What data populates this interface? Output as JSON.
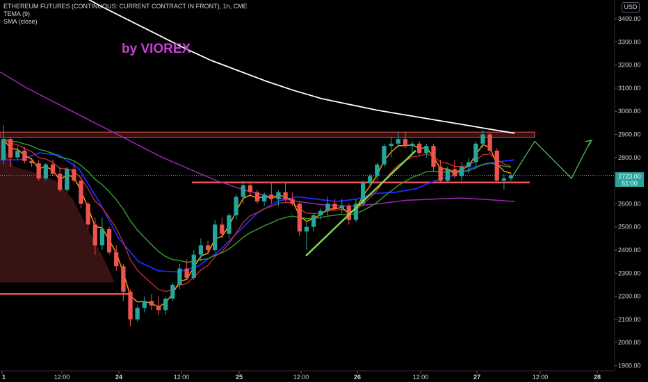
{
  "header": {
    "title": "ETHEREUM FUTURES (CONTINUOUS: CURRENT CONTRACT IN FRONT), 1h, CME",
    "indicator1": "TEMA (9)",
    "indicator2": "SMA (close)"
  },
  "watermark": "by VIOREX",
  "currency": "USD",
  "current_price": {
    "value": "2723.00",
    "countdown": "51:00"
  },
  "colors": {
    "background": "#000000",
    "up": "#26a69a",
    "down": "#ef5350",
    "sma_long": "#ffffff",
    "sma_purple": "#9c27b0",
    "tema_orange": "#ff9800",
    "ma_blue": "#1e2bff",
    "ma_green": "#2e9b2e",
    "ma_red": "#d32f2f",
    "zone": "#ef5350",
    "trendline": "#7fd94a",
    "projection": "#4caf50",
    "watermark": "#c83fd6"
  },
  "chart_data": {
    "type": "candlestick",
    "symbol": "ETHEREUM FUTURES (CONTINUOUS: CURRENT CONTRACT IN FRONT)",
    "interval": "1h",
    "exchange": "CME",
    "ylim": [
      1860,
      3530
    ],
    "y_ticks": [
      "3400.00",
      "3300.00",
      "3200.00",
      "3100.00",
      "3000.00",
      "2900.00",
      "2800.00",
      "2700.00",
      "2600.00",
      "2500.00",
      "2400.00",
      "2300.00",
      "2200.00",
      "2100.00",
      "2000.00",
      "1900.00"
    ],
    "x_ticks": [
      "1",
      "12:00",
      "24",
      "12:00",
      "25",
      "12:00",
      "26",
      "12:00",
      "27",
      "12:00",
      "28"
    ],
    "candles_ohlc": [
      [
        2790,
        2940,
        2770,
        2880
      ],
      [
        2880,
        2890,
        2760,
        2800
      ],
      [
        2800,
        2850,
        2790,
        2830
      ],
      [
        2830,
        2845,
        2775,
        2785
      ],
      [
        2785,
        2800,
        2760,
        2775
      ],
      [
        2775,
        2790,
        2700,
        2710
      ],
      [
        2710,
        2775,
        2700,
        2770
      ],
      [
        2770,
        2790,
        2720,
        2730
      ],
      [
        2730,
        2760,
        2650,
        2660
      ],
      [
        2660,
        2760,
        2650,
        2750
      ],
      [
        2750,
        2780,
        2690,
        2700
      ],
      [
        2700,
        2720,
        2580,
        2600
      ],
      [
        2600,
        2610,
        2490,
        2510
      ],
      [
        2510,
        2540,
        2380,
        2420
      ],
      [
        2420,
        2540,
        2400,
        2490
      ],
      [
        2490,
        2500,
        2380,
        2390
      ],
      [
        2390,
        2420,
        2310,
        2330
      ],
      [
        2330,
        2340,
        2180,
        2220
      ],
      [
        2220,
        2230,
        2070,
        2100
      ],
      [
        2100,
        2160,
        2090,
        2150
      ],
      [
        2150,
        2200,
        2130,
        2180
      ],
      [
        2180,
        2210,
        2140,
        2160
      ],
      [
        2160,
        2200,
        2120,
        2140
      ],
      [
        2140,
        2200,
        2120,
        2190
      ],
      [
        2190,
        2260,
        2180,
        2250
      ],
      [
        2250,
        2340,
        2230,
        2320
      ],
      [
        2320,
        2360,
        2270,
        2280
      ],
      [
        2280,
        2400,
        2270,
        2380
      ],
      [
        2380,
        2450,
        2350,
        2420
      ],
      [
        2420,
        2440,
        2380,
        2400
      ],
      [
        2400,
        2530,
        2390,
        2510
      ],
      [
        2510,
        2540,
        2450,
        2470
      ],
      [
        2470,
        2560,
        2450,
        2550
      ],
      [
        2550,
        2640,
        2530,
        2630
      ],
      [
        2630,
        2700,
        2600,
        2680
      ],
      [
        2680,
        2690,
        2640,
        2650
      ],
      [
        2650,
        2660,
        2600,
        2610
      ],
      [
        2610,
        2650,
        2590,
        2640
      ],
      [
        2640,
        2690,
        2600,
        2620
      ],
      [
        2620,
        2660,
        2590,
        2650
      ],
      [
        2650,
        2690,
        2610,
        2620
      ],
      [
        2620,
        2650,
        2590,
        2600
      ],
      [
        2600,
        2610,
        2460,
        2480
      ],
      [
        2480,
        2520,
        2400,
        2500
      ],
      [
        2500,
        2560,
        2480,
        2550
      ],
      [
        2550,
        2580,
        2530,
        2570
      ],
      [
        2570,
        2630,
        2550,
        2600
      ],
      [
        2600,
        2620,
        2570,
        2580
      ],
      [
        2580,
        2620,
        2560,
        2590
      ],
      [
        2590,
        2600,
        2510,
        2530
      ],
      [
        2530,
        2620,
        2520,
        2600
      ],
      [
        2600,
        2700,
        2590,
        2690
      ],
      [
        2690,
        2730,
        2680,
        2720
      ],
      [
        2720,
        2780,
        2700,
        2770
      ],
      [
        2770,
        2860,
        2760,
        2850
      ],
      [
        2850,
        2890,
        2800,
        2860
      ],
      [
        2860,
        2910,
        2840,
        2880
      ],
      [
        2880,
        2910,
        2840,
        2850
      ],
      [
        2850,
        2870,
        2820,
        2860
      ],
      [
        2860,
        2870,
        2810,
        2820
      ],
      [
        2820,
        2860,
        2800,
        2850
      ],
      [
        2850,
        2860,
        2740,
        2760
      ],
      [
        2760,
        2790,
        2690,
        2700
      ],
      [
        2700,
        2760,
        2690,
        2750
      ],
      [
        2750,
        2790,
        2710,
        2720
      ],
      [
        2720,
        2780,
        2700,
        2760
      ],
      [
        2760,
        2800,
        2730,
        2780
      ],
      [
        2780,
        2870,
        2760,
        2860
      ],
      [
        2860,
        2920,
        2840,
        2900
      ],
      [
        2900,
        2910,
        2820,
        2830
      ],
      [
        2830,
        2840,
        2690,
        2700
      ],
      [
        2700,
        2730,
        2660,
        2710
      ],
      [
        2710,
        2730,
        2700,
        2723
      ]
    ],
    "overlays": {
      "sma_long_white": [
        3520,
        3455,
        3395,
        3335,
        3275,
        3220,
        3175,
        3130,
        3090,
        3055,
        3030,
        3005,
        2985,
        2965,
        2945,
        2925,
        2905
      ],
      "sma_purple": [
        3170,
        3100,
        3040,
        2980,
        2920,
        2860,
        2800,
        2750,
        2700,
        2660,
        2630,
        2610,
        2595,
        2590,
        2600,
        2615,
        2620,
        2625,
        2618,
        2610
      ],
      "ma_blue": [
        2790,
        2790,
        2820,
        2810,
        2750,
        2610,
        2450,
        2350,
        2310,
        2305,
        2330,
        2390,
        2475,
        2560,
        2610,
        2630,
        2620,
        2610,
        2620,
        2645,
        2650,
        2665,
        2700,
        2725,
        2760,
        2780,
        2790
      ]
    },
    "annotations": {
      "resistance_zone": [
        2888,
        2910
      ],
      "support_line": 2692,
      "lower_line": 2210,
      "trendline": {
        "from": [
          2375
        ],
        "to": [
          2830
        ]
      },
      "projection": [
        2723,
        2870,
        2710,
        2875
      ]
    }
  }
}
